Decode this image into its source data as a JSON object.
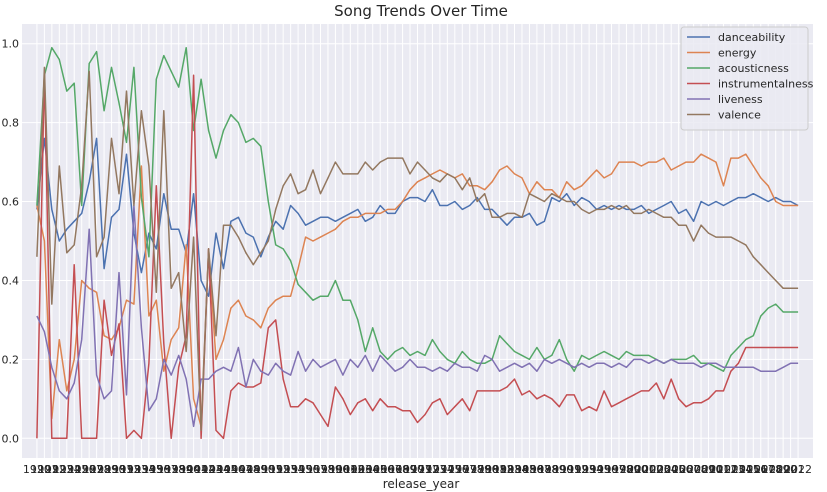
{
  "chart_data": {
    "type": "line",
    "title": "Song Trends Over Time",
    "xlabel": "release_year",
    "ylabel": "",
    "ylim": [
      -0.05,
      1.05
    ],
    "yticks": [
      "0.0",
      "0.2",
      "0.4",
      "0.6",
      "0.8",
      "1.0"
    ],
    "ytick_values": [
      0.0,
      0.2,
      0.4,
      0.6,
      0.8,
      1.0
    ],
    "xtick_first": "1920",
    "xtick_last": "2022",
    "grid": true,
    "legend_position": "top-right",
    "x": [
      1920,
      1921,
      1922,
      1923,
      1924,
      1925,
      1926,
      1927,
      1928,
      1929,
      1930,
      1931,
      1932,
      1933,
      1934,
      1935,
      1936,
      1937,
      1938,
      1939,
      1940,
      1941,
      1942,
      1943,
      1944,
      1945,
      1946,
      1947,
      1948,
      1949,
      1950,
      1951,
      1952,
      1953,
      1954,
      1955,
      1956,
      1957,
      1958,
      1959,
      1960,
      1961,
      1962,
      1963,
      1964,
      1965,
      1966,
      1967,
      1968,
      1969,
      1970,
      1971,
      1972,
      1973,
      1974,
      1975,
      1976,
      1977,
      1978,
      1979,
      1980,
      1981,
      1982,
      1983,
      1984,
      1985,
      1986,
      1987,
      1988,
      1989,
      1990,
      1991,
      1992,
      1993,
      1994,
      1995,
      1996,
      1997,
      1998,
      1999,
      2000,
      2001,
      2002,
      2003,
      2004,
      2005,
      2006,
      2007,
      2008,
      2009,
      2010,
      2011,
      2012,
      2013,
      2014,
      2015,
      2016,
      2017,
      2018,
      2019,
      2020,
      2021,
      2022
    ],
    "series": [
      {
        "name": "danceability",
        "color": "#4c72b0",
        "values": [
          0.58,
          0.76,
          0.58,
          0.5,
          0.53,
          0.55,
          0.57,
          0.65,
          0.76,
          0.43,
          0.56,
          0.58,
          0.72,
          0.52,
          0.42,
          0.52,
          0.48,
          0.62,
          0.53,
          0.53,
          0.47,
          0.62,
          0.4,
          0.36,
          0.52,
          0.43,
          0.55,
          0.56,
          0.52,
          0.51,
          0.46,
          0.51,
          0.55,
          0.53,
          0.59,
          0.57,
          0.54,
          0.55,
          0.56,
          0.56,
          0.55,
          0.56,
          0.57,
          0.58,
          0.55,
          0.56,
          0.59,
          0.57,
          0.57,
          0.6,
          0.61,
          0.61,
          0.6,
          0.63,
          0.59,
          0.59,
          0.6,
          0.58,
          0.59,
          0.61,
          0.58,
          0.58,
          0.56,
          0.54,
          0.56,
          0.56,
          0.57,
          0.54,
          0.55,
          0.61,
          0.6,
          0.62,
          0.59,
          0.61,
          0.6,
          0.58,
          0.59,
          0.58,
          0.59,
          0.58,
          0.58,
          0.59,
          0.57,
          0.58,
          0.59,
          0.6,
          0.57,
          0.58,
          0.55,
          0.6,
          0.59,
          0.6,
          0.59,
          0.6,
          0.61,
          0.61,
          0.62,
          0.61,
          0.6,
          0.61,
          0.6,
          0.6,
          0.59
        ]
      },
      {
        "name": "energy",
        "color": "#dd8452",
        "values": [
          0.59,
          0.5,
          0.05,
          0.25,
          0.12,
          0.2,
          0.4,
          0.38,
          0.37,
          0.26,
          0.25,
          0.28,
          0.35,
          0.34,
          0.69,
          0.31,
          0.35,
          0.17,
          0.25,
          0.28,
          0.49,
          0.1,
          0.03,
          0.48,
          0.2,
          0.25,
          0.33,
          0.35,
          0.31,
          0.3,
          0.28,
          0.33,
          0.35,
          0.36,
          0.36,
          0.43,
          0.51,
          0.5,
          0.51,
          0.52,
          0.53,
          0.55,
          0.56,
          0.56,
          0.57,
          0.57,
          0.57,
          0.58,
          0.58,
          0.6,
          0.63,
          0.65,
          0.66,
          0.67,
          0.68,
          0.67,
          0.66,
          0.67,
          0.64,
          0.64,
          0.63,
          0.65,
          0.68,
          0.69,
          0.67,
          0.66,
          0.62,
          0.65,
          0.63,
          0.63,
          0.61,
          0.65,
          0.63,
          0.64,
          0.66,
          0.68,
          0.66,
          0.67,
          0.7,
          0.7,
          0.7,
          0.69,
          0.7,
          0.7,
          0.71,
          0.68,
          0.69,
          0.7,
          0.7,
          0.72,
          0.71,
          0.7,
          0.64,
          0.71,
          0.71,
          0.72,
          0.69,
          0.66,
          0.64,
          0.6,
          0.59,
          0.59,
          0.59
        ]
      },
      {
        "name": "acousticness",
        "color": "#55a868",
        "values": [
          0.59,
          0.92,
          0.99,
          0.96,
          0.88,
          0.9,
          0.59,
          0.95,
          0.98,
          0.83,
          0.94,
          0.85,
          0.75,
          0.94,
          0.61,
          0.46,
          0.91,
          0.97,
          0.93,
          0.89,
          0.99,
          0.78,
          0.91,
          0.78,
          0.71,
          0.78,
          0.82,
          0.8,
          0.75,
          0.76,
          0.74,
          0.6,
          0.49,
          0.48,
          0.45,
          0.39,
          0.37,
          0.35,
          0.36,
          0.36,
          0.4,
          0.35,
          0.35,
          0.3,
          0.22,
          0.28,
          0.22,
          0.2,
          0.22,
          0.23,
          0.21,
          0.22,
          0.21,
          0.25,
          0.22,
          0.2,
          0.19,
          0.22,
          0.2,
          0.19,
          0.19,
          0.2,
          0.26,
          0.24,
          0.22,
          0.21,
          0.2,
          0.23,
          0.2,
          0.21,
          0.25,
          0.2,
          0.17,
          0.21,
          0.2,
          0.21,
          0.22,
          0.21,
          0.2,
          0.22,
          0.21,
          0.21,
          0.21,
          0.2,
          0.19,
          0.2,
          0.2,
          0.2,
          0.21,
          0.19,
          0.19,
          0.18,
          0.17,
          0.21,
          0.23,
          0.25,
          0.26,
          0.31,
          0.33,
          0.34,
          0.32,
          0.32,
          0.32
        ]
      },
      {
        "name": "instrumentalness",
        "color": "#c44e52",
        "values": [
          0.0,
          0.93,
          0.0,
          0.0,
          0.0,
          0.44,
          0.0,
          0.0,
          0.0,
          0.35,
          0.21,
          0.29,
          0.0,
          0.02,
          0.0,
          0.19,
          0.64,
          0.24,
          0.0,
          0.18,
          0.26,
          0.92,
          0.0,
          0.48,
          0.02,
          0.0,
          0.12,
          0.14,
          0.13,
          0.13,
          0.14,
          0.28,
          0.3,
          0.15,
          0.08,
          0.08,
          0.1,
          0.09,
          0.06,
          0.03,
          0.13,
          0.1,
          0.06,
          0.09,
          0.1,
          0.07,
          0.1,
          0.08,
          0.08,
          0.07,
          0.07,
          0.04,
          0.06,
          0.09,
          0.1,
          0.06,
          0.08,
          0.1,
          0.07,
          0.12,
          0.12,
          0.12,
          0.12,
          0.13,
          0.15,
          0.11,
          0.12,
          0.1,
          0.11,
          0.1,
          0.08,
          0.11,
          0.11,
          0.07,
          0.08,
          0.07,
          0.12,
          0.08,
          0.09,
          0.1,
          0.11,
          0.12,
          0.12,
          0.14,
          0.1,
          0.15,
          0.1,
          0.08,
          0.09,
          0.09,
          0.1,
          0.12,
          0.12,
          0.17,
          0.19,
          0.23,
          0.23,
          0.23,
          0.23,
          0.23,
          0.23,
          0.23,
          0.23
        ]
      },
      {
        "name": "liveness",
        "color": "#8172b3",
        "values": [
          0.31,
          0.27,
          0.18,
          0.12,
          0.1,
          0.14,
          0.25,
          0.53,
          0.16,
          0.1,
          0.12,
          0.42,
          0.11,
          0.59,
          0.28,
          0.07,
          0.1,
          0.2,
          0.16,
          0.21,
          0.15,
          0.03,
          0.15,
          0.15,
          0.17,
          0.18,
          0.17,
          0.23,
          0.13,
          0.2,
          0.17,
          0.16,
          0.19,
          0.17,
          0.16,
          0.22,
          0.17,
          0.2,
          0.18,
          0.19,
          0.2,
          0.16,
          0.2,
          0.18,
          0.21,
          0.17,
          0.21,
          0.19,
          0.17,
          0.18,
          0.2,
          0.18,
          0.18,
          0.17,
          0.18,
          0.17,
          0.19,
          0.18,
          0.18,
          0.17,
          0.21,
          0.2,
          0.17,
          0.18,
          0.19,
          0.18,
          0.19,
          0.17,
          0.2,
          0.19,
          0.2,
          0.19,
          0.18,
          0.19,
          0.18,
          0.19,
          0.19,
          0.18,
          0.19,
          0.18,
          0.2,
          0.2,
          0.19,
          0.2,
          0.19,
          0.2,
          0.19,
          0.19,
          0.19,
          0.18,
          0.19,
          0.19,
          0.18,
          0.18,
          0.18,
          0.18,
          0.18,
          0.17,
          0.17,
          0.17,
          0.18,
          0.19,
          0.19
        ]
      },
      {
        "name": "valence",
        "color": "#937860",
        "values": [
          0.46,
          0.94,
          0.34,
          0.69,
          0.47,
          0.49,
          0.64,
          0.93,
          0.46,
          0.51,
          0.76,
          0.62,
          0.88,
          0.59,
          0.83,
          0.69,
          0.37,
          0.83,
          0.38,
          0.42,
          0.22,
          0.51,
          0.02,
          0.48,
          0.26,
          0.54,
          0.54,
          0.51,
          0.47,
          0.44,
          0.47,
          0.5,
          0.58,
          0.64,
          0.67,
          0.62,
          0.63,
          0.68,
          0.62,
          0.66,
          0.7,
          0.67,
          0.67,
          0.67,
          0.7,
          0.68,
          0.7,
          0.71,
          0.71,
          0.71,
          0.67,
          0.7,
          0.68,
          0.66,
          0.65,
          0.67,
          0.66,
          0.63,
          0.66,
          0.6,
          0.62,
          0.56,
          0.56,
          0.57,
          0.57,
          0.56,
          0.62,
          0.61,
          0.6,
          0.62,
          0.61,
          0.6,
          0.6,
          0.58,
          0.57,
          0.58,
          0.58,
          0.59,
          0.58,
          0.59,
          0.57,
          0.57,
          0.58,
          0.57,
          0.56,
          0.56,
          0.54,
          0.54,
          0.5,
          0.54,
          0.52,
          0.51,
          0.51,
          0.51,
          0.5,
          0.49,
          0.46,
          0.44,
          0.42,
          0.4,
          0.38,
          0.38,
          0.38
        ]
      }
    ]
  }
}
